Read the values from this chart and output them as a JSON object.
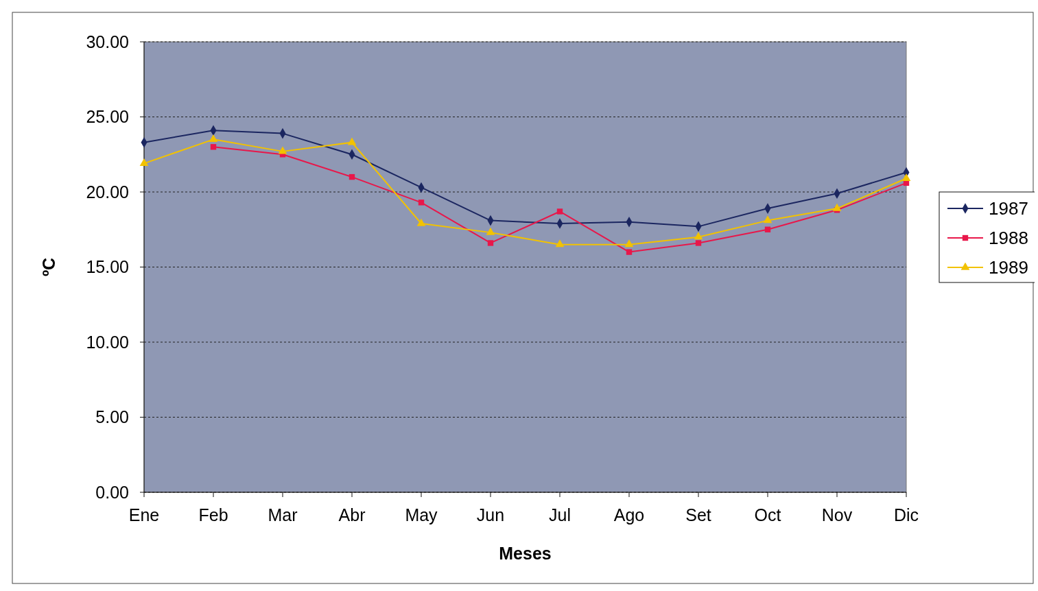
{
  "chart_data": {
    "type": "line",
    "xlabel": "Meses",
    "ylabel": "ºC",
    "categories": [
      "Ene",
      "Feb",
      "Mar",
      "Abr",
      "May",
      "Jun",
      "Jul",
      "Ago",
      "Set",
      "Oct",
      "Nov",
      "Dic"
    ],
    "ylim": [
      0,
      30
    ],
    "yticks": [
      {
        "value": 0,
        "label": "0.00"
      },
      {
        "value": 5,
        "label": "5.00"
      },
      {
        "value": 10,
        "label": "10.00"
      },
      {
        "value": 15,
        "label": "15.00"
      },
      {
        "value": 20,
        "label": "20.00"
      },
      {
        "value": 25,
        "label": "25.00"
      },
      {
        "value": 30,
        "label": "30.00"
      }
    ],
    "grid": "y",
    "legend": "right",
    "line_style": "solid",
    "series": [
      {
        "name": "1987",
        "color": "#1b2660",
        "marker": "diamond",
        "values": [
          23.3,
          24.1,
          23.9,
          22.5,
          20.3,
          18.1,
          17.9,
          18.0,
          17.7,
          18.9,
          19.9,
          21.3
        ]
      },
      {
        "name": "1988",
        "color": "#e8174a",
        "marker": "square",
        "values": [
          null,
          23.0,
          22.5,
          21.0,
          19.3,
          16.6,
          18.7,
          16.0,
          16.6,
          17.5,
          18.8,
          20.6
        ]
      },
      {
        "name": "1989",
        "color": "#f2c200",
        "marker": "triangle",
        "values": [
          21.9,
          23.5,
          22.7,
          23.3,
          17.9,
          17.3,
          16.5,
          16.5,
          17.0,
          18.1,
          18.9,
          20.9
        ]
      }
    ]
  }
}
